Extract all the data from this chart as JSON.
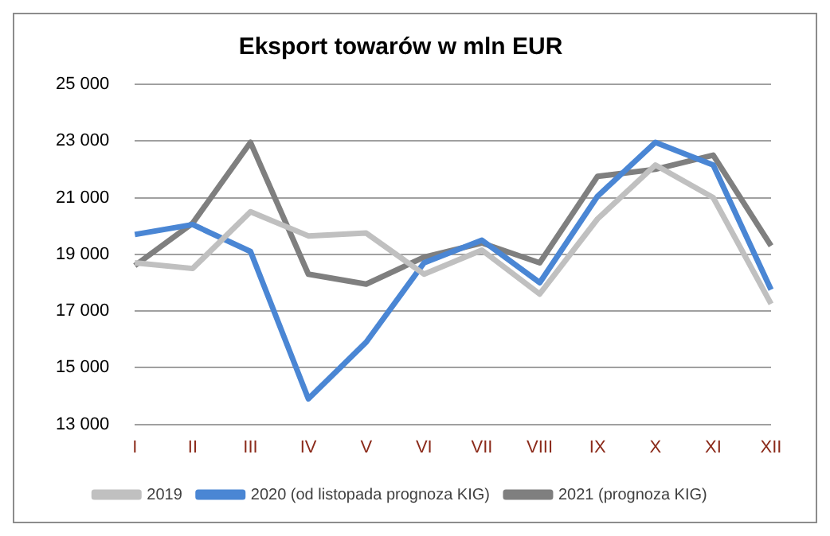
{
  "chart_data": {
    "type": "line",
    "title": "Eksport towarów w mln EUR",
    "categories": [
      "I",
      "II",
      "III",
      "IV",
      "V",
      "VI",
      "VII",
      "VIII",
      "IX",
      "X",
      "XI",
      "XII"
    ],
    "series": [
      {
        "name": "2019",
        "color": "#c0c0c0",
        "values": [
          18700,
          18500,
          20500,
          19650,
          19750,
          18300,
          19150,
          17600,
          20250,
          22150,
          21000,
          17250
        ]
      },
      {
        "name": "2020 (od listopada prognoza KIG)",
        "color": "#4a86d4",
        "values": [
          19700,
          20050,
          19100,
          13900,
          15900,
          18700,
          19500,
          18000,
          21050,
          22950,
          22150,
          17750
        ]
      },
      {
        "name": "2021 (prognoza KIG)",
        "color": "#7f7f7f",
        "values": [
          18600,
          20100,
          22950,
          18300,
          17950,
          18900,
          19400,
          18700,
          21750,
          22000,
          22500,
          19300
        ]
      }
    ],
    "ylim": [
      13000,
      25000
    ],
    "yticks": [
      {
        "value": 13000,
        "label": "13 000"
      },
      {
        "value": 15000,
        "label": "15 000"
      },
      {
        "value": 17000,
        "label": "17 000"
      },
      {
        "value": 19000,
        "label": "19 000"
      },
      {
        "value": 21000,
        "label": "21 000"
      },
      {
        "value": 23000,
        "label": "23 000"
      },
      {
        "value": 25000,
        "label": "25 000"
      }
    ],
    "grid": "y",
    "legend": "bottom",
    "marker": "none",
    "line_style": "solid"
  }
}
